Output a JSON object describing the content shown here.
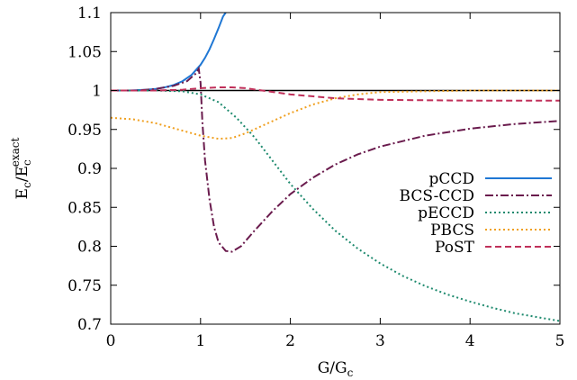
{
  "chart_data": {
    "type": "line",
    "xlabel": "G/G",
    "xlabel_sub": "c",
    "ylabel": "E",
    "ylabel_sub": "c",
    "ylabel_slash": "/",
    "ylabel_sup": "exact",
    "xlim": [
      0,
      5
    ],
    "ylim": [
      0.7,
      1.1
    ],
    "x_ticks": [
      "0",
      "1",
      "2",
      "3",
      "4",
      "5"
    ],
    "y_ticks": [
      "0.7",
      "0.75",
      "0.8",
      "0.85",
      "0.9",
      "0.95",
      "1",
      "1.05",
      "1.1"
    ],
    "grid": false,
    "legend_position": "right",
    "reference_line": {
      "y": 1.0,
      "color": "#000000"
    },
    "series": [
      {
        "name": "pCCD",
        "color": "#1f77d4",
        "dash": "solid",
        "points": [
          [
            0,
            1.0
          ],
          [
            0.2,
            1.0
          ],
          [
            0.4,
            1.001
          ],
          [
            0.5,
            1.002
          ],
          [
            0.6,
            1.004
          ],
          [
            0.7,
            1.007
          ],
          [
            0.8,
            1.012
          ],
          [
            0.9,
            1.02
          ],
          [
            1.0,
            1.033
          ],
          [
            1.05,
            1.042
          ],
          [
            1.1,
            1.053
          ],
          [
            1.15,
            1.066
          ],
          [
            1.2,
            1.08
          ],
          [
            1.25,
            1.095
          ],
          [
            1.28,
            1.1
          ]
        ]
      },
      {
        "name": "BCS-CCD",
        "color": "#6a1b4d",
        "dash": "dashdot",
        "points": [
          [
            0,
            1.0
          ],
          [
            0.3,
            1.0
          ],
          [
            0.5,
            1.002
          ],
          [
            0.7,
            1.006
          ],
          [
            0.85,
            1.012
          ],
          [
            0.95,
            1.022
          ],
          [
            0.98,
            1.028
          ],
          [
            1.0,
            1.01
          ],
          [
            1.02,
            0.96
          ],
          [
            1.05,
            0.91
          ],
          [
            1.1,
            0.86
          ],
          [
            1.15,
            0.825
          ],
          [
            1.2,
            0.805
          ],
          [
            1.28,
            0.794
          ],
          [
            1.35,
            0.793
          ],
          [
            1.45,
            0.8
          ],
          [
            1.6,
            0.82
          ],
          [
            1.8,
            0.845
          ],
          [
            2.0,
            0.867
          ],
          [
            2.25,
            0.888
          ],
          [
            2.5,
            0.905
          ],
          [
            2.75,
            0.918
          ],
          [
            3.0,
            0.928
          ],
          [
            3.5,
            0.942
          ],
          [
            4.0,
            0.951
          ],
          [
            4.5,
            0.957
          ],
          [
            5.0,
            0.961
          ]
        ]
      },
      {
        "name": "pECCD",
        "color": "#1e8a6e",
        "dash": "dotted",
        "points": [
          [
            0,
            1.0
          ],
          [
            0.5,
            1.0
          ],
          [
            0.8,
            0.999
          ],
          [
            1.0,
            0.995
          ],
          [
            1.2,
            0.985
          ],
          [
            1.4,
            0.965
          ],
          [
            1.6,
            0.94
          ],
          [
            1.8,
            0.91
          ],
          [
            2.0,
            0.88
          ],
          [
            2.25,
            0.848
          ],
          [
            2.5,
            0.82
          ],
          [
            2.75,
            0.797
          ],
          [
            3.0,
            0.778
          ],
          [
            3.25,
            0.762
          ],
          [
            3.5,
            0.749
          ],
          [
            3.75,
            0.738
          ],
          [
            4.0,
            0.729
          ],
          [
            4.25,
            0.721
          ],
          [
            4.5,
            0.714
          ],
          [
            4.75,
            0.709
          ],
          [
            5.0,
            0.704
          ]
        ]
      },
      {
        "name": "PBCS",
        "color": "#f0a020",
        "dash": "dotted",
        "points": [
          [
            0,
            0.965
          ],
          [
            0.25,
            0.963
          ],
          [
            0.5,
            0.958
          ],
          [
            0.75,
            0.95
          ],
          [
            1.0,
            0.942
          ],
          [
            1.2,
            0.938
          ],
          [
            1.35,
            0.939
          ],
          [
            1.5,
            0.945
          ],
          [
            1.75,
            0.958
          ],
          [
            2.0,
            0.971
          ],
          [
            2.25,
            0.982
          ],
          [
            2.5,
            0.99
          ],
          [
            2.75,
            0.995
          ],
          [
            3.0,
            0.998
          ],
          [
            3.5,
            0.999
          ],
          [
            4.0,
            1.0
          ],
          [
            5.0,
            1.0
          ]
        ]
      },
      {
        "name": "PoST",
        "color": "#c0305a",
        "dash": "dashed",
        "points": [
          [
            0,
            1.0
          ],
          [
            0.5,
            1.0
          ],
          [
            0.8,
            1.001
          ],
          [
            1.0,
            1.003
          ],
          [
            1.2,
            1.004
          ],
          [
            1.35,
            1.004
          ],
          [
            1.5,
            1.003
          ],
          [
            1.75,
            0.999
          ],
          [
            2.0,
            0.995
          ],
          [
            2.5,
            0.99
          ],
          [
            3.0,
            0.988
          ],
          [
            4.0,
            0.987
          ],
          [
            5.0,
            0.987
          ]
        ]
      }
    ]
  }
}
